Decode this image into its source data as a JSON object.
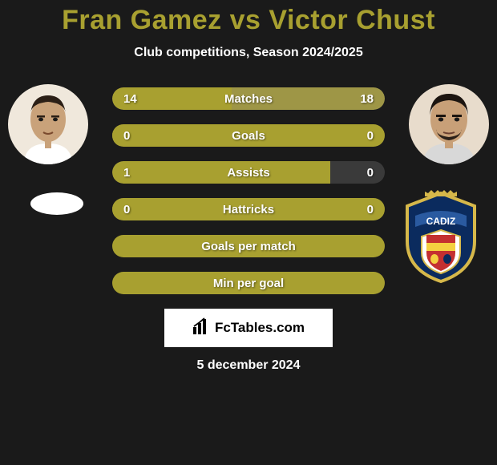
{
  "title": {
    "player1": "Fran Gamez",
    "vs": "vs",
    "player2": "Victor Chust",
    "color": "#a8a030"
  },
  "subtitle": "Club competitions, Season 2024/2025",
  "colors": {
    "bar_primary": "#a8a030",
    "bar_secondary": "#3a3a3a",
    "bar_tertiary": "#9e9646",
    "bg": "#1a1a1a"
  },
  "stats": [
    {
      "label": "Matches",
      "left_val": "14",
      "right_val": "18",
      "left_pct": 43.75,
      "right_pct": 56.25,
      "bg": "#3a3a3a",
      "left_fill": "#a8a030",
      "right_fill": "#9e9646"
    },
    {
      "label": "Goals",
      "left_val": "0",
      "right_val": "0",
      "left_pct": 3,
      "right_pct": 0,
      "bg": "#a8a030",
      "left_fill": "#a8a030",
      "right_fill": "#9e9646"
    },
    {
      "label": "Assists",
      "left_val": "1",
      "right_val": "0",
      "left_pct": 80,
      "right_pct": 0,
      "bg": "#3a3a3a",
      "left_fill": "#a8a030",
      "right_fill": "#9e9646"
    },
    {
      "label": "Hattricks",
      "left_val": "0",
      "right_val": "0",
      "left_pct": 3,
      "right_pct": 0,
      "bg": "#a8a030",
      "left_fill": "#a8a030",
      "right_fill": "#9e9646"
    },
    {
      "label": "Goals per match",
      "left_val": "",
      "right_val": "",
      "left_pct": 0,
      "right_pct": 0,
      "bg": "#a8a030",
      "left_fill": "#a8a030",
      "right_fill": "#9e9646"
    },
    {
      "label": "Min per goal",
      "left_val": "",
      "right_val": "",
      "left_pct": 0,
      "right_pct": 0,
      "bg": "#a8a030",
      "left_fill": "#a8a030",
      "right_fill": "#9e9646"
    }
  ],
  "watermark": "FcTables.com",
  "date": "5 december 2024",
  "avatars": {
    "left_bg": "#f0e8dc",
    "right_bg": "#e8dccc"
  },
  "club_right": {
    "shield_fill": "#0b2b5e",
    "shield_stroke": "#d6b84a",
    "banner_fill": "#2a5aa0",
    "text": "CADIZ"
  }
}
